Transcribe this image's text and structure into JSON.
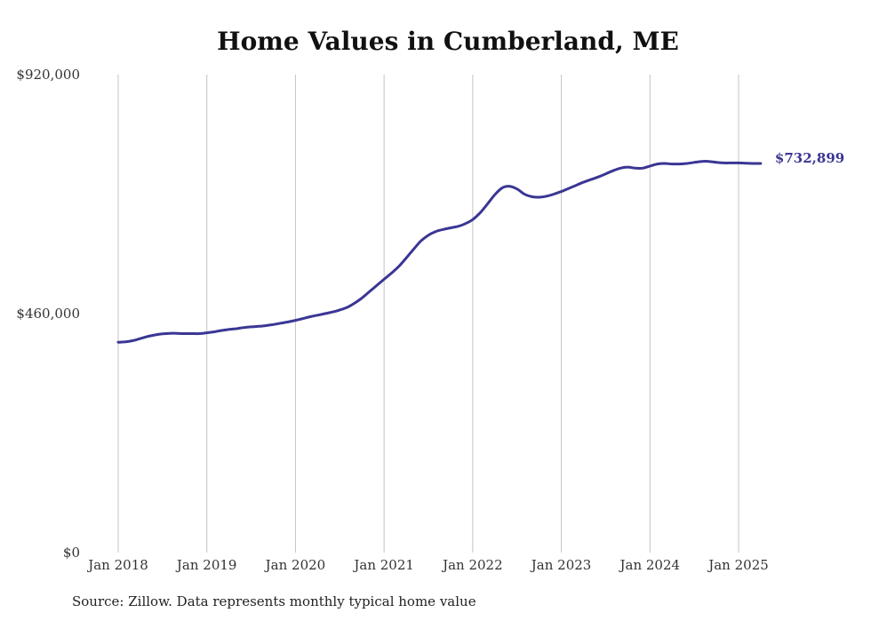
{
  "source_note": "Source: Zillow. Data represents monthly typical home value",
  "chart_data": {
    "type": "line",
    "title": "Home Values in Cumberland, ME",
    "xlabel": "",
    "ylabel": "",
    "x_ticks": [
      "Jan 2018",
      "Jan 2019",
      "Jan 2020",
      "Jan 2021",
      "Jan 2022",
      "Jan 2023",
      "Jan 2024",
      "Jan 2025"
    ],
    "y_ticks": [
      "$0",
      "$460,000",
      "$920,000"
    ],
    "y_tick_values": [
      0,
      460000,
      920000
    ],
    "ylim": [
      0,
      920000
    ],
    "grid": "vertical",
    "line_color": "#3a3694",
    "end_label": "$732,899",
    "series": [
      {
        "values": [
          [
            "2018-01",
            405000
          ],
          [
            "2018-02",
            405700
          ],
          [
            "2018-03",
            408000
          ],
          [
            "2018-04",
            412000
          ],
          [
            "2018-05",
            416000
          ],
          [
            "2018-06",
            419000
          ],
          [
            "2018-07",
            421000
          ],
          [
            "2018-08",
            422000
          ],
          [
            "2018-09",
            422000
          ],
          [
            "2018-10",
            421500
          ],
          [
            "2018-11",
            421500
          ],
          [
            "2018-12",
            421500
          ],
          [
            "2019-01",
            423000
          ],
          [
            "2019-02",
            425000
          ],
          [
            "2019-03",
            427500
          ],
          [
            "2019-04",
            429500
          ],
          [
            "2019-05",
            431000
          ],
          [
            "2019-06",
            433000
          ],
          [
            "2019-07",
            434500
          ],
          [
            "2019-08",
            435500
          ],
          [
            "2019-09",
            437000
          ],
          [
            "2019-10",
            439000
          ],
          [
            "2019-11",
            441500
          ],
          [
            "2019-12",
            444000
          ],
          [
            "2020-01",
            447000
          ],
          [
            "2020-02",
            450500
          ],
          [
            "2020-03",
            454000
          ],
          [
            "2020-04",
            457000
          ],
          [
            "2020-05",
            460000
          ],
          [
            "2020-06",
            463000
          ],
          [
            "2020-07",
            467000
          ],
          [
            "2020-08",
            472000
          ],
          [
            "2020-09",
            480000
          ],
          [
            "2020-10",
            490000
          ],
          [
            "2020-11",
            502000
          ],
          [
            "2020-12",
            514000
          ],
          [
            "2021-01",
            526000
          ],
          [
            "2021-02",
            538000
          ],
          [
            "2021-03",
            551000
          ],
          [
            "2021-04",
            567000
          ],
          [
            "2021-05",
            584000
          ],
          [
            "2021-06",
            600000
          ],
          [
            "2021-07",
            611000
          ],
          [
            "2021-08",
            618000
          ],
          [
            "2021-09",
            622000
          ],
          [
            "2021-10",
            625000
          ],
          [
            "2021-11",
            628000
          ],
          [
            "2021-12",
            633000
          ],
          [
            "2022-01",
            641000
          ],
          [
            "2022-02",
            654000
          ],
          [
            "2022-03",
            671000
          ],
          [
            "2022-04",
            689000
          ],
          [
            "2022-05",
            702000
          ],
          [
            "2022-06",
            705000
          ],
          [
            "2022-07",
            700000
          ],
          [
            "2022-08",
            690000
          ],
          [
            "2022-09",
            685000
          ],
          [
            "2022-10",
            684000
          ],
          [
            "2022-11",
            686000
          ],
          [
            "2022-12",
            690000
          ],
          [
            "2023-01",
            695000
          ],
          [
            "2023-02",
            701000
          ],
          [
            "2023-03",
            707000
          ],
          [
            "2023-04",
            713000
          ],
          [
            "2023-05",
            718000
          ],
          [
            "2023-06",
            723000
          ],
          [
            "2023-07",
            729000
          ],
          [
            "2023-08",
            735000
          ],
          [
            "2023-09",
            740000
          ],
          [
            "2023-10",
            742000
          ],
          [
            "2023-11",
            740000
          ],
          [
            "2023-12",
            740000
          ],
          [
            "2024-01",
            744000
          ],
          [
            "2024-02",
            748000
          ],
          [
            "2024-03",
            749000
          ],
          [
            "2024-04",
            748000
          ],
          [
            "2024-05",
            748000
          ],
          [
            "2024-06",
            749000
          ],
          [
            "2024-07",
            751000
          ],
          [
            "2024-08",
            753000
          ],
          [
            "2024-09",
            753000
          ],
          [
            "2024-10",
            751000
          ],
          [
            "2024-11",
            750000
          ],
          [
            "2024-12",
            750000
          ],
          [
            "2025-01",
            750000
          ],
          [
            "2025-02",
            749500
          ],
          [
            "2025-03",
            749000
          ],
          [
            "2025-04",
            732899
          ]
        ]
      }
    ]
  }
}
